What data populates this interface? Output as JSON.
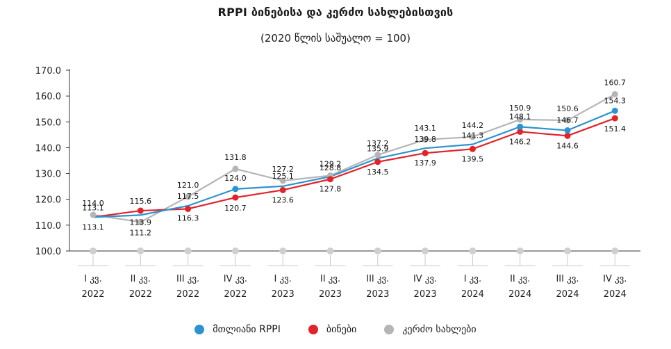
{
  "title": "RPPI ბინებისა და კერძო სახლებისთვის",
  "subtitle": "(2020 წლის საშუალო = 100)",
  "chart_data": {
    "type": "line",
    "ylim": [
      100,
      170
    ],
    "yticks": [
      "100.0",
      "110.0",
      "120.0",
      "130.0",
      "140.0",
      "150.0",
      "160.0",
      "170.0"
    ],
    "categories": [
      [
        "I კვ.",
        "2022"
      ],
      [
        "II კვ.",
        "2022"
      ],
      [
        "III კვ.",
        "2022"
      ],
      [
        "IV კვ.",
        "2022"
      ],
      [
        "I კვ.",
        "2023"
      ],
      [
        "II კვ.",
        "2023"
      ],
      [
        "III კვ.",
        "2023"
      ],
      [
        "IV კვ.",
        "2023"
      ],
      [
        "I კვ.",
        "2024"
      ],
      [
        "II კვ.",
        "2024"
      ],
      [
        "III კვ.",
        "2024"
      ],
      [
        "IV კვ.",
        "2024"
      ]
    ],
    "series": [
      {
        "name": "მთლიანი RPPI",
        "color": "#2b93cf",
        "values": [
          113.1,
          113.9,
          117.5,
          124.0,
          125.1,
          128.8,
          135.9,
          139.8,
          141.3,
          148.1,
          146.7,
          154.3
        ],
        "markers": [
          false,
          false,
          false,
          true,
          false,
          false,
          false,
          false,
          false,
          true,
          true,
          true
        ],
        "labels": [
          "113.1",
          "113.9",
          "117.5",
          "124.0",
          "125.1",
          "128.8",
          "135.9",
          "139.8",
          "141.3",
          "148.1",
          "146.7",
          "154.3"
        ]
      },
      {
        "name": "ბინები",
        "color": "#e2232a",
        "values": [
          113.1,
          115.6,
          116.3,
          120.7,
          123.6,
          127.8,
          134.5,
          137.9,
          139.5,
          146.2,
          144.6,
          151.4
        ],
        "markers": [
          false,
          true,
          true,
          true,
          true,
          true,
          true,
          true,
          true,
          true,
          true,
          true
        ],
        "labels": [
          "113.1",
          "115.6",
          "116.3",
          "120.7",
          "123.6",
          "127.8",
          "134.5",
          "137.9",
          "139.5",
          "146.2",
          "144.6",
          "151.4"
        ]
      },
      {
        "name": "კერძო სახლები",
        "color": "#b5b5b5",
        "values": [
          114.0,
          111.2,
          121.0,
          131.8,
          127.2,
          129.2,
          137.2,
          143.1,
          144.2,
          150.9,
          150.6,
          160.7
        ],
        "markers": [
          true,
          true,
          true,
          true,
          true,
          true,
          true,
          true,
          true,
          true,
          true,
          true
        ],
        "labels": [
          "114.0",
          "111.2",
          "121.0",
          "131.8",
          "127.2",
          "129.2",
          "137.2",
          "143.1",
          "144.2",
          "150.9",
          "150.6",
          "160.7"
        ]
      }
    ],
    "grid": false,
    "legend_position": "bottom"
  }
}
